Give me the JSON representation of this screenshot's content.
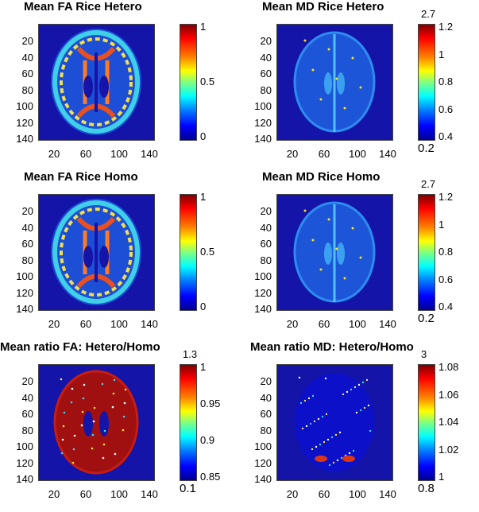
{
  "panels": [
    {
      "title": "Mean FA Rice Hetero",
      "cb_top_label": "",
      "cb_bottom_label": "",
      "cb_ticks": [
        "1",
        "0.5",
        "0"
      ],
      "kind": "fa"
    },
    {
      "title": "Mean MD Rice Hetero",
      "cb_top_label": "2.7",
      "cb_bottom_label": "0.2",
      "cb_ticks": [
        "1.2",
        "1",
        "0.8",
        "0.6",
        "0.4"
      ],
      "kind": "md"
    },
    {
      "title": "Mean FA Rice Homo",
      "cb_top_label": "",
      "cb_bottom_label": "",
      "cb_ticks": [
        "1",
        "0.5",
        "0"
      ],
      "kind": "fa"
    },
    {
      "title": "Mean MD Rice Homo",
      "cb_top_label": "2.7",
      "cb_bottom_label": "0.2",
      "cb_ticks": [
        "1.2",
        "1",
        "0.8",
        "0.6",
        "0.4"
      ],
      "kind": "md"
    },
    {
      "title": "Mean ratio FA: Hetero/Homo",
      "cb_top_label": "1.3",
      "cb_bottom_label": "0.1",
      "cb_ticks": [
        "1",
        "0.95",
        "0.9",
        "0.85"
      ],
      "kind": "ratiofa"
    },
    {
      "title": "Mean ratio MD: Hetero/Homo",
      "cb_top_label": "3",
      "cb_bottom_label": "0.8",
      "cb_ticks": [
        "1.08",
        "1.06",
        "1.04",
        "1.02",
        "1"
      ],
      "kind": "ratiomd"
    }
  ],
  "y_ticks": [
    "20",
    "40",
    "60",
    "80",
    "100",
    "120",
    "140"
  ],
  "x_ticks": [
    "20",
    "60",
    "100",
    "140"
  ],
  "colormap": "jet"
}
